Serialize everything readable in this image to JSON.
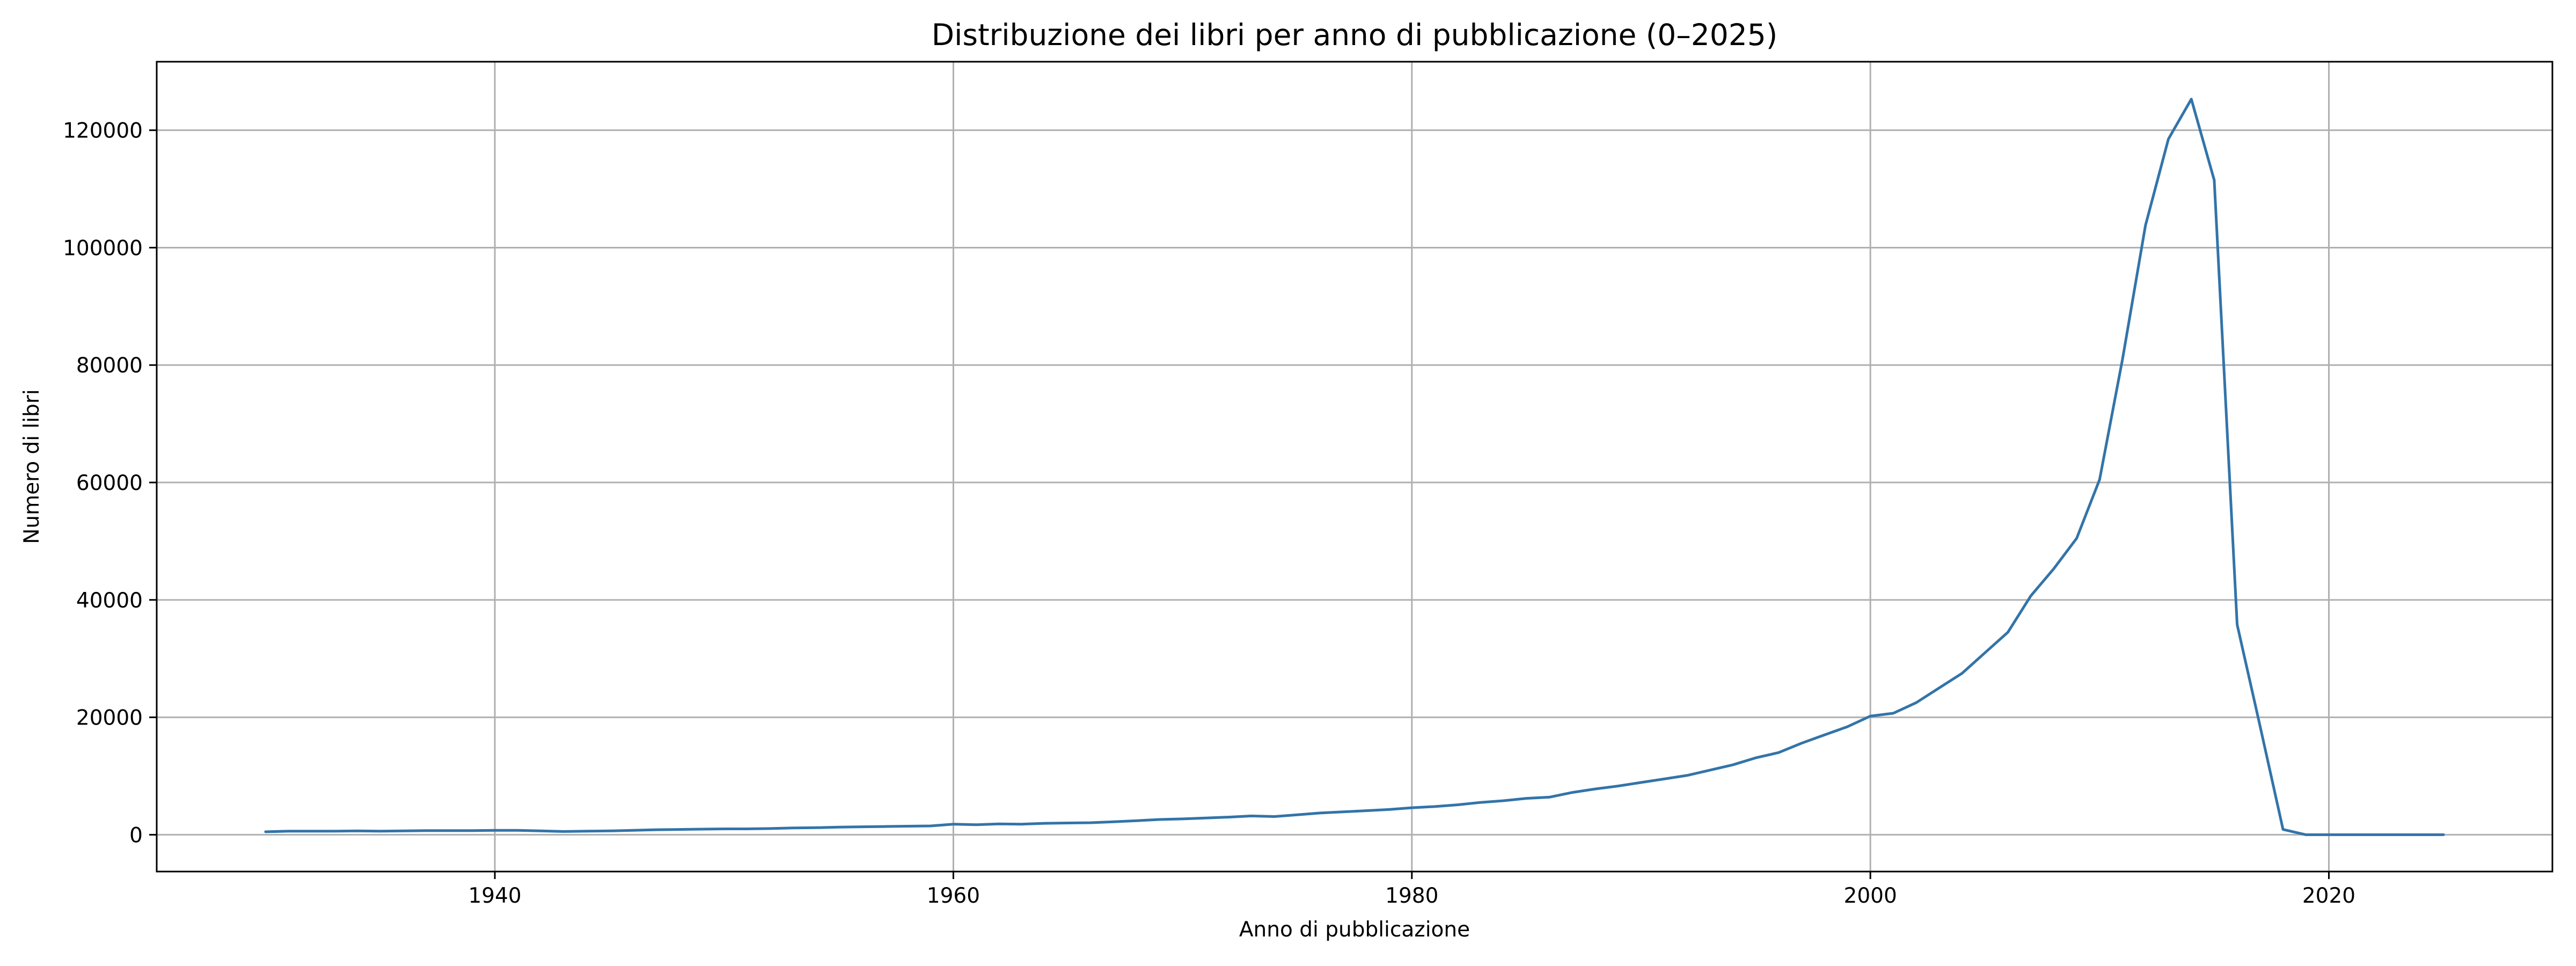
{
  "chart_data": {
    "type": "line",
    "title": "Distribuzione dei libri per anno di pubblicazione (0–2025)",
    "xlabel": "Anno di pubblicazione",
    "ylabel": "Numero di libri",
    "xlim": [
      1925.25,
      2029.75
    ],
    "ylim": [
      -6270,
      131670
    ],
    "x_ticks": [
      1940,
      1960,
      1980,
      2000,
      2020
    ],
    "y_ticks": [
      0,
      20000,
      40000,
      60000,
      80000,
      100000,
      120000
    ],
    "grid": true,
    "legend": "none",
    "line_color": "#3274a9",
    "x": [
      1930,
      1931,
      1932,
      1933,
      1934,
      1935,
      1936,
      1937,
      1938,
      1939,
      1940,
      1941,
      1942,
      1943,
      1944,
      1945,
      1946,
      1947,
      1948,
      1949,
      1950,
      1951,
      1952,
      1953,
      1954,
      1955,
      1956,
      1957,
      1958,
      1959,
      1960,
      1961,
      1962,
      1963,
      1964,
      1965,
      1966,
      1967,
      1968,
      1969,
      1970,
      1971,
      1972,
      1973,
      1974,
      1975,
      1976,
      1977,
      1978,
      1979,
      1980,
      1981,
      1982,
      1983,
      1984,
      1985,
      1986,
      1987,
      1988,
      1989,
      1990,
      1991,
      1992,
      1993,
      1994,
      1995,
      1996,
      1997,
      1998,
      1999,
      2000,
      2001,
      2002,
      2003,
      2004,
      2005,
      2006,
      2007,
      2008,
      2009,
      2010,
      2011,
      2012,
      2013,
      2014,
      2015,
      2016,
      2017,
      2018,
      2019,
      2020,
      2021,
      2022,
      2023,
      2024,
      2025
    ],
    "values": [
      500,
      600,
      600,
      600,
      650,
      600,
      650,
      700,
      700,
      700,
      750,
      750,
      650,
      550,
      600,
      650,
      750,
      850,
      900,
      950,
      1000,
      1000,
      1050,
      1150,
      1200,
      1300,
      1350,
      1400,
      1450,
      1500,
      1800,
      1700,
      1850,
      1800,
      1950,
      2000,
      2050,
      2200,
      2400,
      2600,
      2700,
      2850,
      3000,
      3200,
      3100,
      3400,
      3700,
      3900,
      4100,
      4300,
      4600,
      4800,
      5100,
      5500,
      5800,
      6200,
      6400,
      7200,
      7800,
      8300,
      8900,
      9500,
      10100,
      11000,
      11900,
      13100,
      14000,
      15600,
      17000,
      18400,
      20200,
      20700,
      22500,
      25000,
      27500,
      31000,
      34500,
      40700,
      45300,
      50500,
      60500,
      81000,
      103800,
      118500,
      125300,
      111500,
      35800,
      18500,
      900,
      0,
      0,
      0,
      0,
      0,
      0,
      0
    ]
  }
}
